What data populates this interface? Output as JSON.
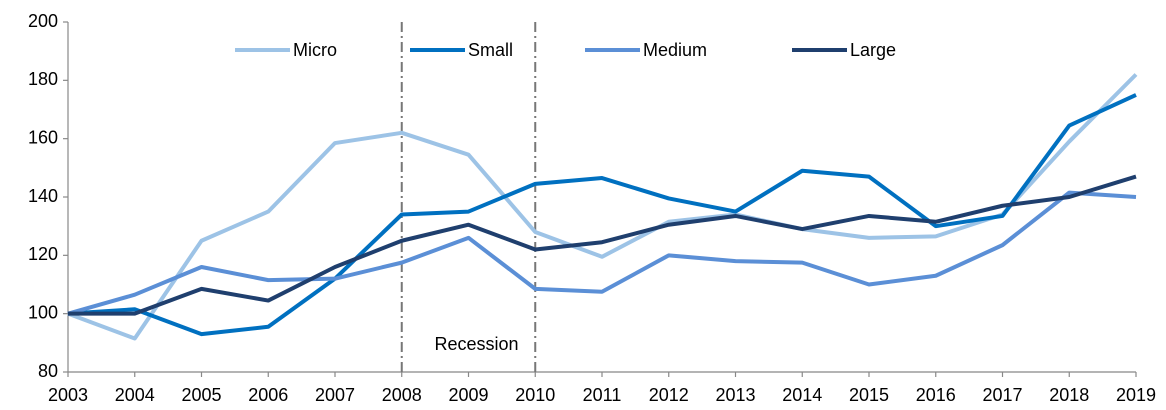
{
  "chart_data": {
    "type": "line",
    "categories": [
      "2003",
      "2004",
      "2005",
      "2006",
      "2007",
      "2008",
      "2009",
      "2010",
      "2011",
      "2012",
      "2013",
      "2014",
      "2015",
      "2016",
      "2017",
      "2018",
      "2019"
    ],
    "series": [
      {
        "name": "Micro",
        "color": "#9dc3e6",
        "values": [
          100,
          91.5,
          125,
          135,
          158.5,
          162,
          154.5,
          128,
          119.5,
          131.5,
          134,
          129,
          126,
          126.5,
          134,
          159,
          182
        ]
      },
      {
        "name": "Small",
        "color": "#0070c0",
        "values": [
          100,
          101.5,
          93,
          95.5,
          112,
          134,
          135,
          144.5,
          146.5,
          139.5,
          135,
          149,
          147,
          130,
          133.5,
          164.5,
          175
        ]
      },
      {
        "name": "Medium",
        "color": "#5b8fd6",
        "values": [
          100,
          106.5,
          116,
          111.5,
          112,
          117.5,
          126,
          108.5,
          107.5,
          120,
          118,
          117.5,
          110,
          113,
          123.5,
          141.5,
          140
        ]
      },
      {
        "name": "Large",
        "color": "#1f3f6e",
        "values": [
          100,
          100,
          108.5,
          104.5,
          116,
          125,
          130.5,
          122,
          124.5,
          130.5,
          133.5,
          129,
          133.5,
          131.5,
          137,
          140,
          147
        ]
      }
    ],
    "ylim": [
      80,
      200
    ],
    "yticks": [
      80,
      100,
      120,
      140,
      160,
      180,
      200
    ],
    "recession": {
      "label": "Recession",
      "start": "2008",
      "end": "2010"
    },
    "legend": "top"
  }
}
